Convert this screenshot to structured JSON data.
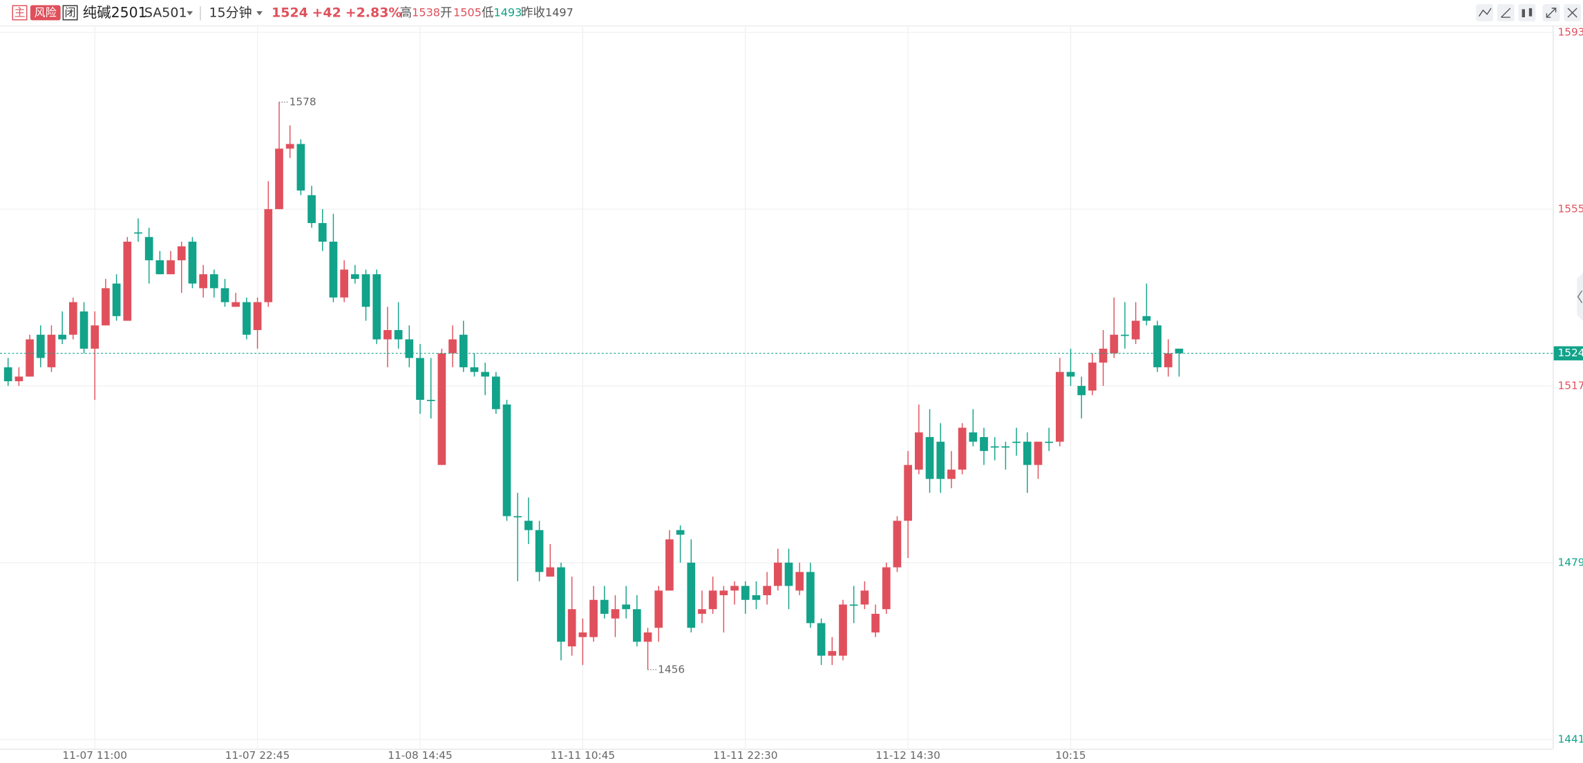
{
  "header": {
    "main": "主",
    "risk": "风险",
    "closed": "闭",
    "name": "纯碱2501",
    "code": "SA501",
    "period": "15分钟",
    "price": "1524",
    "change": "+42",
    "change_pct": "+2.83%",
    "high_label": "高",
    "high": "1538",
    "open_label": "开",
    "open": "1505",
    "low_label": "低",
    "low": "1493",
    "prev_close_label": "昨收",
    "prev_close": "1497"
  },
  "chart_data": {
    "type": "candlestick",
    "categories": [
      null,
      null,
      null,
      null,
      null,
      null,
      null,
      null,
      "11-07 11:00",
      null,
      null,
      null,
      null,
      null,
      null,
      null,
      null,
      null,
      null,
      null,
      null,
      null,
      null,
      "11-07 22:45",
      null,
      null,
      null,
      null,
      null,
      null,
      null,
      null,
      null,
      null,
      null,
      null,
      null,
      null,
      "11-08 14:45",
      null,
      null,
      null,
      null,
      null,
      null,
      null,
      null,
      null,
      null,
      null,
      null,
      null,
      null,
      "11-11 10:45",
      null,
      null,
      null,
      null,
      null,
      null,
      null,
      null,
      null,
      null,
      null,
      null,
      null,
      null,
      "11-11 22:30",
      null,
      null,
      null,
      null,
      null,
      null,
      null,
      null,
      null,
      null,
      null,
      null,
      null,
      null,
      "11-12 14:30",
      null,
      null,
      null,
      null,
      null,
      null,
      null,
      null,
      null,
      null,
      null,
      null,
      null,
      null,
      "10:15",
      null,
      null,
      null,
      null,
      null,
      null,
      null,
      null,
      null,
      null
    ],
    "open": [
      1521,
      1518,
      1519,
      1528,
      1521,
      1528,
      1528,
      1533,
      1525,
      1530,
      1539,
      1531,
      1550,
      1549,
      1544,
      1541,
      1544,
      1548,
      1538,
      1541,
      1538,
      1534,
      1535,
      1529,
      1535,
      1555,
      1568,
      1569,
      1558,
      1552,
      1548,
      1536,
      1541,
      1541,
      1541,
      1527,
      1529,
      1527,
      1523,
      1514,
      1500,
      1524,
      1528,
      1521,
      1520,
      1519,
      1513,
      1489,
      1488,
      1486,
      1476,
      1478,
      1461,
      1463,
      1463,
      1471,
      1467,
      1470,
      1469,
      1462,
      1465,
      1473,
      1486,
      1479,
      1468,
      1469,
      1472,
      1473,
      1474,
      1472,
      1472,
      1474,
      1479,
      1473,
      1477,
      1466,
      1459,
      1459,
      1470,
      1470,
      1464,
      1469,
      1478,
      1488,
      1499,
      1506,
      1505,
      1497,
      1499,
      1507,
      1506,
      1504,
      1504,
      1505,
      1505,
      1500,
      1505,
      1505,
      1520,
      1517,
      1516,
      1522,
      1524,
      1528,
      1527,
      1532,
      1530,
      1521,
      1525
    ],
    "high": [
      1523,
      1521,
      1528,
      1530,
      1530,
      1533,
      1536,
      1535,
      1533,
      1540,
      1541,
      1549,
      1553,
      1551,
      1546,
      1546,
      1548,
      1549,
      1543,
      1542,
      1540,
      1537,
      1536,
      1536,
      1561,
      1578,
      1573,
      1570,
      1560,
      1555,
      1554,
      1544,
      1543,
      1542,
      1542,
      1534,
      1535,
      1530,
      1526,
      1523,
      1525,
      1530,
      1531,
      1524,
      1522,
      1520,
      1514,
      1494,
      1493,
      1488,
      1483,
      1479,
      1476,
      1467,
      1474,
      1474,
      1472,
      1474,
      1472,
      1465,
      1474,
      1486,
      1487,
      1484,
      1473,
      1476,
      1474,
      1475,
      1475,
      1475,
      1477,
      1482,
      1482,
      1479,
      1479,
      1467,
      1463,
      1471,
      1474,
      1475,
      1470,
      1479,
      1489,
      1503,
      1513,
      1512,
      1509,
      1503,
      1509,
      1512,
      1508,
      1506,
      1505,
      1508,
      1507,
      1505,
      1508,
      1523,
      1525,
      1519,
      1524,
      1529,
      1536,
      1535,
      1535,
      1539,
      1531,
      1527,
      1525
    ],
    "low": [
      1517,
      1517,
      1519,
      1521,
      1520,
      1526,
      1527,
      1524,
      1514,
      1530,
      1531,
      1531,
      1548,
      1539,
      1541,
      1541,
      1537,
      1538,
      1536,
      1536,
      1534,
      1534,
      1527,
      1525,
      1534,
      1555,
      1566,
      1558,
      1551,
      1546,
      1535,
      1535,
      1539,
      1531,
      1526,
      1521,
      1525,
      1521,
      1511,
      1510,
      1500,
      1521,
      1520,
      1519,
      1515,
      1511,
      1488,
      1475,
      1483,
      1475,
      1476,
      1458,
      1459,
      1457,
      1462,
      1467,
      1463,
      1467,
      1461,
      1456,
      1462,
      1473,
      1479,
      1464,
      1466,
      1468,
      1464,
      1470,
      1468,
      1469,
      1470,
      1473,
      1469,
      1472,
      1465,
      1457,
      1457,
      1458,
      1466,
      1469,
      1463,
      1468,
      1477,
      1480,
      1498,
      1494,
      1494,
      1495,
      1498,
      1504,
      1500,
      1501,
      1499,
      1502,
      1494,
      1497,
      1503,
      1504,
      1517,
      1510,
      1515,
      1517,
      1523,
      1525,
      1526,
      1530,
      1520,
      1519,
      1519
    ],
    "close": [
      1518,
      1519,
      1527,
      1523,
      1528,
      1527,
      1535,
      1525,
      1530,
      1538,
      1532,
      1548,
      1550,
      1544,
      1541,
      1544,
      1547,
      1539,
      1541,
      1538,
      1535,
      1535,
      1528,
      1535,
      1555,
      1568,
      1569,
      1559,
      1552,
      1548,
      1536,
      1542,
      1540,
      1534,
      1527,
      1529,
      1527,
      1523,
      1514,
      1514,
      1524,
      1527,
      1521,
      1520,
      1519,
      1512,
      1489,
      1489,
      1486,
      1477,
      1478,
      1462,
      1469,
      1464,
      1471,
      1468,
      1469,
      1469,
      1462,
      1464,
      1473,
      1484,
      1485,
      1465,
      1469,
      1473,
      1473,
      1474,
      1471,
      1471,
      1474,
      1479,
      1474,
      1477,
      1466,
      1459,
      1460,
      1470,
      1470,
      1473,
      1468,
      1478,
      1488,
      1500,
      1507,
      1497,
      1497,
      1499,
      1508,
      1505,
      1503,
      1504,
      1504,
      1505,
      1500,
      1505,
      1505,
      1520,
      1519,
      1515,
      1522,
      1525,
      1528,
      1528,
      1531,
      1531,
      1521,
      1524,
      1524
    ],
    "ylim": [
      1439,
      1594.5
    ],
    "yticks": [
      1441,
      1479,
      1517,
      1555,
      1593
    ],
    "up_color": "#e0505c",
    "down_color": "#12a38a",
    "grid": true
  }
}
